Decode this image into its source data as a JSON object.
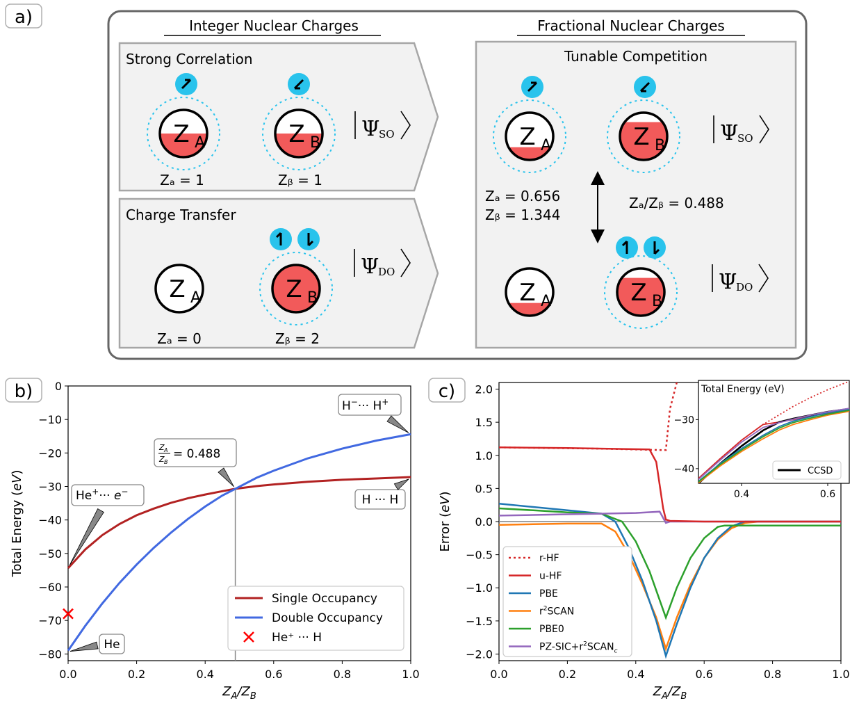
{
  "panel_a": {
    "label": "a)",
    "heading_integer": "Integer Nuclear Charges",
    "heading_fractional": "Fractional Nuclear Charges",
    "box_strong_title": "Strong Correlation",
    "box_ct_title": "Charge Transfer",
    "box_tunable_title": "Tunable Competition",
    "strong_za": "Zₐ = 1",
    "strong_zb": "Zᵦ = 1",
    "ct_za": "Zₐ = 0",
    "ct_zb": "Zᵦ = 2",
    "frac_za": "Zₐ = 0.656",
    "frac_zb": "Zᵦ = 1.344",
    "frac_ratio": "Zₐ/Zᵦ = 0.488",
    "psi_so": "Ψ",
    "psi_so_sub": "SO",
    "psi_do": "Ψ",
    "psi_do_sub": "DO",
    "nucleus_a": "Z",
    "nucleus_a_sub": "A",
    "nucleus_b": "Z",
    "nucleus_b_sub": "B",
    "colors": {
      "electron": "#29c3ec",
      "fill": "#f25a5a",
      "box": "#f2f2f2",
      "border": "#a6a6a6"
    }
  },
  "panel_b_label": "b)",
  "panel_c_label": "c)",
  "chart_data": [
    {
      "type": "line",
      "panel": "b",
      "xlabel": "Z_A/Z_B",
      "ylabel": "Total Energy (eV)",
      "xlim": [
        0,
        1
      ],
      "ylim": [
        -82,
        0
      ],
      "xticks": [
        "0.0",
        "0.2",
        "0.4",
        "0.6",
        "0.8",
        "1.0"
      ],
      "yticks": [
        "0",
        "−10",
        "−20",
        "−30",
        "−40",
        "−50",
        "−60",
        "−70",
        "−80"
      ],
      "x": [
        0,
        0.05,
        0.1,
        0.15,
        0.2,
        0.25,
        0.3,
        0.35,
        0.4,
        0.45,
        0.488,
        0.55,
        0.6,
        0.7,
        0.8,
        0.9,
        1.0
      ],
      "series": [
        {
          "name": "Single Occupancy",
          "color": "#b22222",
          "values": [
            -54.4,
            -48.8,
            -44.5,
            -41.2,
            -38.6,
            -36.6,
            -34.9,
            -33.5,
            -32.4,
            -31.4,
            -30.7,
            -29.9,
            -29.4,
            -28.6,
            -28.0,
            -27.6,
            -27.2
          ]
        },
        {
          "name": "Double Occupancy",
          "color": "#4169e1",
          "values": [
            -79.0,
            -71.6,
            -64.9,
            -58.8,
            -53.3,
            -48.3,
            -43.8,
            -39.7,
            -36.0,
            -32.7,
            -30.7,
            -27.4,
            -25.3,
            -21.6,
            -18.7,
            -16.3,
            -14.4
          ]
        },
        {
          "name": "He⁺ ··· H",
          "color": "#ff0000",
          "marker": "x",
          "x": [
            0
          ],
          "values": [
            -68
          ]
        }
      ],
      "annotations": [
        {
          "text": "H⁻··· H⁺",
          "x": 1.0,
          "y": -14.4
        },
        {
          "text": "= 0.488",
          "prefix": "Zₐ/Zᵦ",
          "x": 0.488,
          "y": -30.7
        },
        {
          "text": "He⁺··· e⁻",
          "x": 0.0,
          "y": -54.4
        },
        {
          "text": "H ··· H",
          "x": 1.0,
          "y": -27.2
        },
        {
          "text": "He",
          "x": 0.0,
          "y": -79.0
        }
      ],
      "vline": 0.488,
      "legend": "lower-right"
    },
    {
      "type": "line",
      "panel": "c",
      "xlabel": "Z_A/Z_B",
      "ylabel": "Error (eV)",
      "xlim": [
        0,
        1
      ],
      "ylim": [
        -2.1,
        2.1
      ],
      "xticks": [
        "0.0",
        "0.2",
        "0.4",
        "0.6",
        "0.8",
        "1.0"
      ],
      "yticks": [
        "2.0",
        "1.5",
        "1.0",
        "0.5",
        "0.0",
        "−0.5",
        "−1.0",
        "−1.5",
        "−2.0"
      ],
      "series": [
        {
          "name": "r-HF",
          "color": "#d62728",
          "dashed": true,
          "x": [
            0,
            0.3,
            0.47,
            0.488,
            0.5,
            0.52
          ],
          "values": [
            1.12,
            1.1,
            1.08,
            1.08,
            1.7,
            2.1
          ]
        },
        {
          "name": "u-HF",
          "color": "#d62728",
          "x": [
            0,
            0.2,
            0.44,
            0.46,
            0.48,
            0.488,
            0.5,
            0.6,
            0.8,
            1.0
          ],
          "values": [
            1.12,
            1.11,
            1.09,
            0.9,
            0.2,
            0.03,
            0.01,
            0.0,
            0.0,
            0.0
          ]
        },
        {
          "name": "PBE",
          "color": "#1f77b4",
          "x": [
            0,
            0.1,
            0.2,
            0.3,
            0.34,
            0.38,
            0.42,
            0.46,
            0.488,
            0.52,
            0.56,
            0.6,
            0.64,
            0.68,
            0.72,
            0.8,
            1.0
          ],
          "values": [
            0.27,
            0.22,
            0.17,
            0.12,
            0.0,
            -0.4,
            -0.9,
            -1.5,
            -2.03,
            -1.55,
            -1.0,
            -0.55,
            -0.25,
            -0.07,
            0.0,
            0.0,
            0.0
          ]
        },
        {
          "name": "r²SCAN",
          "color": "#ff7f0e",
          "x": [
            0,
            0.1,
            0.2,
            0.3,
            0.34,
            0.38,
            0.42,
            0.46,
            0.488,
            0.52,
            0.56,
            0.6,
            0.64,
            0.68,
            0.72,
            0.76,
            0.8,
            1.0
          ],
          "values": [
            -0.05,
            -0.04,
            -0.03,
            -0.03,
            -0.15,
            -0.5,
            -0.95,
            -1.45,
            -1.92,
            -1.45,
            -0.95,
            -0.55,
            -0.27,
            -0.1,
            -0.02,
            0.0,
            0.0,
            0.0
          ]
        },
        {
          "name": "PBE0",
          "color": "#2ca02c",
          "x": [
            0,
            0.1,
            0.2,
            0.3,
            0.36,
            0.4,
            0.44,
            0.488,
            0.52,
            0.56,
            0.6,
            0.64,
            0.66,
            0.8,
            1.0
          ],
          "values": [
            0.2,
            0.17,
            0.14,
            0.12,
            0.0,
            -0.3,
            -0.75,
            -1.45,
            -1.0,
            -0.55,
            -0.25,
            -0.08,
            -0.06,
            -0.06,
            -0.06
          ]
        },
        {
          "name": "PZ-SIC+r²SCANᴄ",
          "color": "#9467bd",
          "x": [
            0,
            0.1,
            0.2,
            0.3,
            0.4,
            0.47,
            0.488,
            0.5,
            0.6,
            0.8,
            1.0
          ],
          "values": [
            0.09,
            0.1,
            0.11,
            0.12,
            0.13,
            0.15,
            -0.02,
            0.0,
            0.0,
            0.0,
            0.0
          ]
        },
        {
          "name": "zero",
          "color": "#808080",
          "x": [
            0,
            1.0
          ],
          "values": [
            0,
            0
          ]
        }
      ],
      "legend": "lower-left",
      "inset": {
        "title": "Total Energy (eV)",
        "xlim": [
          0.3,
          0.65
        ],
        "ylim": [
          -43,
          -22
        ],
        "xticks": [
          "0.4",
          "0.6"
        ],
        "yticks": [
          "−30",
          "−40"
        ],
        "legend": "CCSD",
        "series": [
          {
            "name": "r-HF",
            "color": "#d62728",
            "dashed": true,
            "x": [
              0.3,
              0.35,
              0.4,
              0.45,
              0.488,
              0.52,
              0.56,
              0.6,
              0.65
            ],
            "values": [
              -42.0,
              -38.0,
              -34.2,
              -31.0,
              -29.0,
              -27.3,
              -25.5,
              -23.9,
              -22.2
            ]
          },
          {
            "name": "u-HF",
            "color": "#d62728",
            "x": [
              0.3,
              0.35,
              0.4,
              0.45,
              0.488,
              0.52,
              0.56,
              0.6,
              0.65
            ],
            "values": [
              -42.0,
              -38.0,
              -34.2,
              -31.0,
              -30.5,
              -30.0,
              -29.3,
              -28.7,
              -28.0
            ]
          },
          {
            "name": "CCSD",
            "color": "#000000",
            "x": [
              0.3,
              0.35,
              0.4,
              0.45,
              0.488,
              0.52,
              0.56,
              0.6,
              0.65
            ],
            "values": [
              -43.0,
              -39.0,
              -35.4,
              -32.2,
              -30.5,
              -29.8,
              -29.1,
              -28.4,
              -27.8
            ]
          },
          {
            "name": "PBE",
            "color": "#1f77b4",
            "x": [
              0.3,
              0.35,
              0.4,
              0.45,
              0.488,
              0.52,
              0.56,
              0.6,
              0.65
            ],
            "values": [
              -42.6,
              -39.0,
              -35.9,
              -33.2,
              -31.4,
              -30.3,
              -29.4,
              -28.6,
              -27.9
            ]
          },
          {
            "name": "r²SCAN",
            "color": "#ff7f0e",
            "x": [
              0.3,
              0.35,
              0.4,
              0.45,
              0.488,
              0.52,
              0.56,
              0.6,
              0.65
            ],
            "values": [
              -42.9,
              -39.5,
              -36.5,
              -33.9,
              -32.1,
              -31.0,
              -30.0,
              -29.1,
              -28.3
            ]
          },
          {
            "name": "PBE0",
            "color": "#2ca02c",
            "x": [
              0.3,
              0.35,
              0.4,
              0.45,
              0.488,
              0.52,
              0.56,
              0.6,
              0.65
            ],
            "values": [
              -42.7,
              -39.2,
              -36.2,
              -33.5,
              -31.7,
              -30.6,
              -29.7,
              -28.9,
              -28.1
            ]
          },
          {
            "name": "PZ-SIC+r²SCANᴄ",
            "color": "#9467bd",
            "x": [
              0.3,
              0.35,
              0.4,
              0.45,
              0.488,
              0.52,
              0.56,
              0.6,
              0.65
            ],
            "values": [
              -42.2,
              -38.3,
              -34.6,
              -31.6,
              -30.6,
              -29.9,
              -29.1,
              -28.4,
              -27.7
            ]
          }
        ]
      }
    }
  ]
}
